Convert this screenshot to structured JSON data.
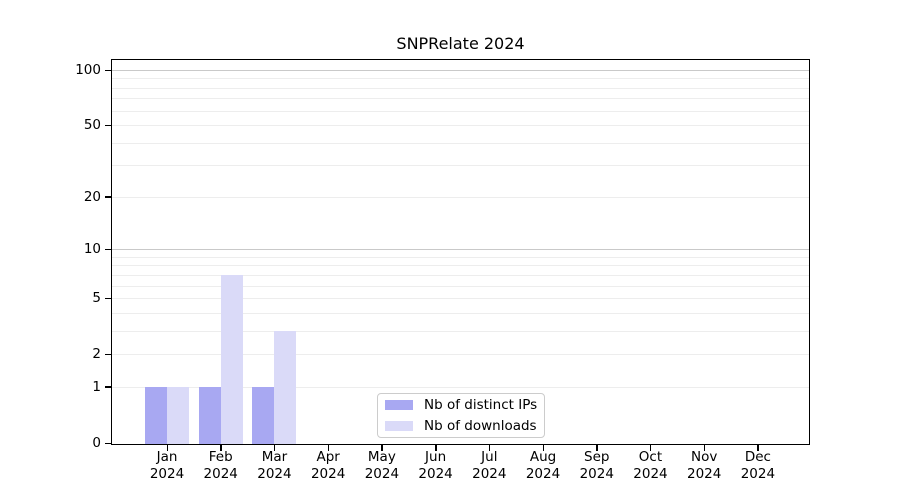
{
  "window": {
    "background": "#ffffff"
  },
  "chart_data": {
    "type": "bar",
    "title": "SNPRelate 2024",
    "x_categories": [
      "Jan",
      "Feb",
      "Mar",
      "Apr",
      "May",
      "Jun",
      "Jul",
      "Aug",
      "Sep",
      "Oct",
      "Nov",
      "Dec"
    ],
    "x_year": "2024",
    "series": [
      {
        "name": "Nb of distinct IPs",
        "color": "#a8a8f2",
        "values": [
          1,
          1,
          1,
          0,
          0,
          0,
          0,
          0,
          0,
          0,
          0,
          0
        ]
      },
      {
        "name": "Nb of downloads",
        "color": "#dadaf8",
        "values": [
          1,
          7,
          3,
          0,
          0,
          0,
          0,
          0,
          0,
          0,
          0,
          0
        ]
      }
    ],
    "y_axis": {
      "scale": "log1p",
      "ticks": [
        0,
        1,
        2,
        5,
        10,
        20,
        50,
        100
      ],
      "range": [
        0,
        114
      ]
    },
    "grid": {
      "on": true,
      "minor_values": [
        1,
        2,
        3,
        4,
        5,
        6,
        7,
        8,
        9,
        20,
        30,
        40,
        50,
        60,
        70,
        80,
        90
      ],
      "major_values": [
        10,
        100
      ],
      "minor_color": "#ededed",
      "major_color": "#c9c9c9"
    },
    "legend_position": "bottom-center"
  },
  "legend": {
    "items": [
      {
        "label": "Nb of distinct IPs",
        "color": "#a8a8f2"
      },
      {
        "label": "Nb of downloads",
        "color": "#dadaf8"
      }
    ]
  }
}
